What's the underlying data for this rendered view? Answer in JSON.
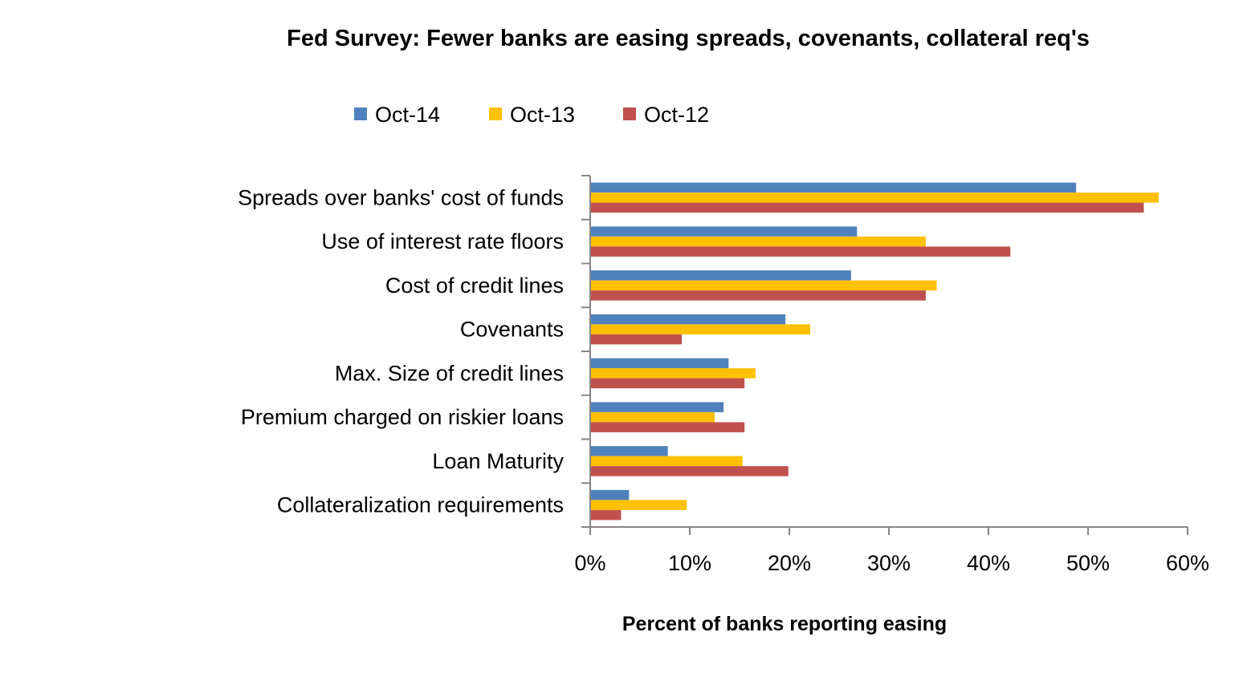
{
  "chart_data": {
    "type": "bar",
    "orientation": "horizontal",
    "title": "Fed Survey: Fewer banks are easing spreads, covenants, collateral req's",
    "xlabel": "Percent of banks reporting easing",
    "ylabel": "",
    "xlim": [
      0,
      60
    ],
    "x_ticks": [
      "0%",
      "10%",
      "20%",
      "30%",
      "40%",
      "50%",
      "60%"
    ],
    "grid": false,
    "legend_position": "top",
    "categories": [
      "Spreads over banks' cost of funds",
      "Use of interest rate floors",
      "Cost of credit lines",
      "Covenants",
      "Max. Size of credit lines",
      "Premium charged on riskier loans",
      "Loan Maturity",
      "Collateralization requirements"
    ],
    "series": [
      {
        "name": "Oct-14",
        "color": "#4F81BD",
        "values": [
          48.8,
          26.8,
          26.2,
          19.6,
          13.9,
          13.4,
          7.8,
          3.9
        ]
      },
      {
        "name": "Oct-13",
        "color": "#FFC000",
        "values": [
          57.1,
          33.7,
          34.8,
          22.1,
          16.6,
          12.5,
          15.3,
          9.7
        ]
      },
      {
        "name": "Oct-12",
        "color": "#C0504D",
        "values": [
          55.6,
          42.2,
          33.7,
          9.2,
          15.5,
          15.5,
          19.9,
          3.1
        ]
      }
    ]
  }
}
